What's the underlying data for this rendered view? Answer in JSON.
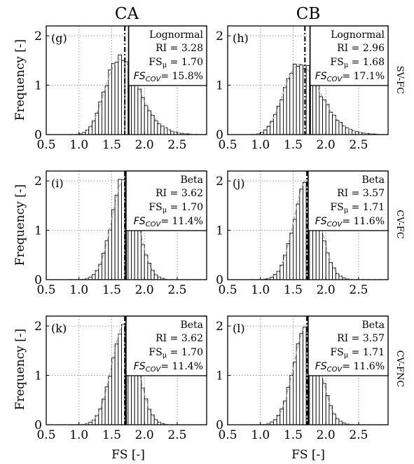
{
  "columns": [
    "CA",
    "CB"
  ],
  "rows": [
    "SV-FC",
    "CV-FC",
    "CV-FNC"
  ],
  "x_label": "FS [-]",
  "y_label": "Frequency [-]",
  "chart_data": [
    {
      "type": "bar",
      "panel": "(g)",
      "col": 0,
      "row": 0,
      "distribution": "Lognormal",
      "ri": "RI = 3.28",
      "fs_mean": "1.70",
      "cov": "15.8%",
      "x": [
        0.5,
        1.0,
        1.5,
        2.0,
        2.5
      ],
      "ylim": [
        0,
        2.2
      ],
      "yticks": [
        0,
        1,
        2
      ],
      "xlim": [
        0.5,
        2.95
      ],
      "mean_line": 1.7,
      "threshold": 1.76,
      "mu": 1.7,
      "sd": 0.27,
      "shape": "lognormal",
      "grid": true
    },
    {
      "type": "bar",
      "panel": "(h)",
      "col": 1,
      "row": 0,
      "distribution": "Lognormal",
      "ri": "RI = 2.96",
      "fs_mean": "1.68",
      "cov": "17.1%",
      "x": [
        0.5,
        1.0,
        1.5,
        2.0,
        2.5
      ],
      "ylim": [
        0,
        2.2
      ],
      "yticks": [
        0,
        1,
        2
      ],
      "xlim": [
        0.5,
        2.95
      ],
      "mean_line": 1.68,
      "threshold": 1.76,
      "mu": 1.68,
      "sd": 0.29,
      "shape": "lognormal",
      "grid": true
    },
    {
      "type": "bar",
      "panel": "(i)",
      "col": 0,
      "row": 1,
      "distribution": "Beta",
      "ri": "RI = 3.62",
      "fs_mean": "1.70",
      "cov": "11.4%",
      "x": [
        0.5,
        1.0,
        1.5,
        2.0,
        2.5
      ],
      "ylim": [
        0,
        2.2
      ],
      "yticks": [
        0,
        1,
        2
      ],
      "xlim": [
        0.5,
        2.95
      ],
      "mean_line": 1.7,
      "threshold": 1.72,
      "mu": 1.7,
      "sd": 0.194,
      "shape": "beta",
      "grid": true
    },
    {
      "type": "bar",
      "panel": "(j)",
      "col": 1,
      "row": 1,
      "distribution": "Beta",
      "ri": "RI = 3.57",
      "fs_mean": "1.71",
      "cov": "11.6%",
      "x": [
        0.5,
        1.0,
        1.5,
        2.0,
        2.5
      ],
      "ylim": [
        0,
        2.2
      ],
      "yticks": [
        0,
        1,
        2
      ],
      "xlim": [
        0.5,
        2.95
      ],
      "mean_line": 1.71,
      "threshold": 1.73,
      "mu": 1.71,
      "sd": 0.198,
      "shape": "beta",
      "grid": true
    },
    {
      "type": "bar",
      "panel": "(k)",
      "col": 0,
      "row": 2,
      "distribution": "Beta",
      "ri": "RI = 3.62",
      "fs_mean": "1.70",
      "cov": "11.4%",
      "x": [
        0.5,
        1.0,
        1.5,
        2.0,
        2.5
      ],
      "ylim": [
        0,
        2.2
      ],
      "yticks": [
        0,
        1,
        2
      ],
      "xlim": [
        0.5,
        2.95
      ],
      "mean_line": 1.7,
      "threshold": 1.72,
      "mu": 1.7,
      "sd": 0.194,
      "shape": "beta",
      "grid": true
    },
    {
      "type": "bar",
      "panel": "(l)",
      "col": 1,
      "row": 2,
      "distribution": "Beta",
      "ri": "RI = 3.57",
      "fs_mean": "1.71",
      "cov": "11.6%",
      "x": [
        0.5,
        1.0,
        1.5,
        2.0,
        2.5
      ],
      "ylim": [
        0,
        2.2
      ],
      "yticks": [
        0,
        1,
        2
      ],
      "xlim": [
        0.5,
        2.95
      ],
      "mean_line": 1.71,
      "threshold": 1.73,
      "mu": 1.71,
      "sd": 0.198,
      "shape": "beta",
      "grid": true
    }
  ]
}
